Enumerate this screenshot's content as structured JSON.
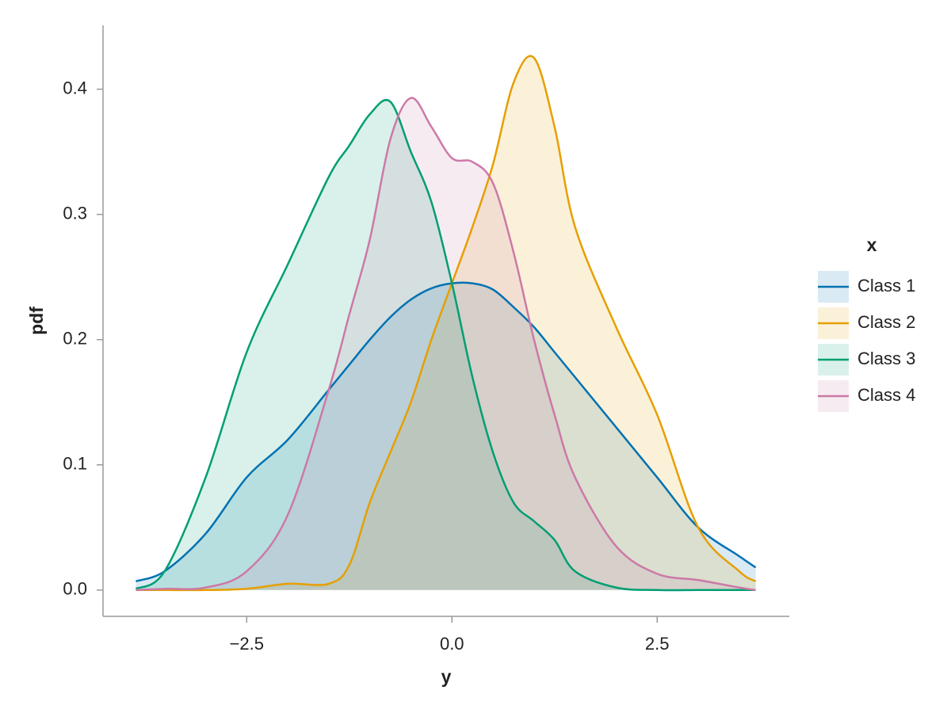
{
  "chart_data": {
    "type": "density",
    "xlabel": "y",
    "ylabel": "pdf",
    "legend_title": "x",
    "legend": "right",
    "x": [
      -3.85,
      -3.5,
      -3,
      -2.5,
      -2,
      -1.5,
      -1.25,
      -1,
      -0.75,
      -0.5,
      -0.25,
      0,
      0.25,
      0.5,
      0.75,
      1,
      1.25,
      1.5,
      2,
      2.5,
      3,
      3.5,
      3.7
    ],
    "series": [
      {
        "name": "Class 1",
        "color": "#0072b2",
        "values": [
          0.007,
          0.015,
          0.045,
          0.09,
          0.12,
          0.16,
          0.18,
          0.2,
          0.218,
          0.232,
          0.241,
          0.245,
          0.245,
          0.24,
          0.226,
          0.21,
          0.19,
          0.17,
          0.13,
          0.09,
          0.05,
          0.027,
          0.018
        ]
      },
      {
        "name": "Class 2",
        "color": "#e69f00",
        "values": [
          0,
          0,
          0,
          0.001,
          0.005,
          0.005,
          0.02,
          0.07,
          0.11,
          0.15,
          0.2,
          0.245,
          0.29,
          0.34,
          0.405,
          0.425,
          0.37,
          0.29,
          0.21,
          0.14,
          0.05,
          0.015,
          0.007
        ]
      },
      {
        "name": "Class 3",
        "color": "#009e73",
        "values": [
          0.001,
          0.015,
          0.09,
          0.19,
          0.26,
          0.33,
          0.355,
          0.38,
          0.39,
          0.35,
          0.31,
          0.245,
          0.17,
          0.11,
          0.07,
          0.055,
          0.04,
          0.015,
          0.002,
          0,
          0,
          0,
          0
        ]
      },
      {
        "name": "Class 4",
        "color": "#cc79a7",
        "values": [
          0,
          0.001,
          0.002,
          0.015,
          0.06,
          0.16,
          0.22,
          0.28,
          0.36,
          0.393,
          0.37,
          0.345,
          0.342,
          0.325,
          0.27,
          0.2,
          0.14,
          0.09,
          0.035,
          0.013,
          0.008,
          0.002,
          0
        ]
      }
    ],
    "xlim": [
      -4.25,
      4.11
    ],
    "ylim": [
      -0.021,
      0.451
    ],
    "xticks": [
      {
        "value": -2.5,
        "label": "−2.5"
      },
      {
        "value": 0,
        "label": "0.0"
      },
      2.5
    ],
    "yticks": [
      {
        "value": 0,
        "label": "0.0"
      },
      0.1,
      0.2,
      0.3,
      0.4
    ]
  }
}
